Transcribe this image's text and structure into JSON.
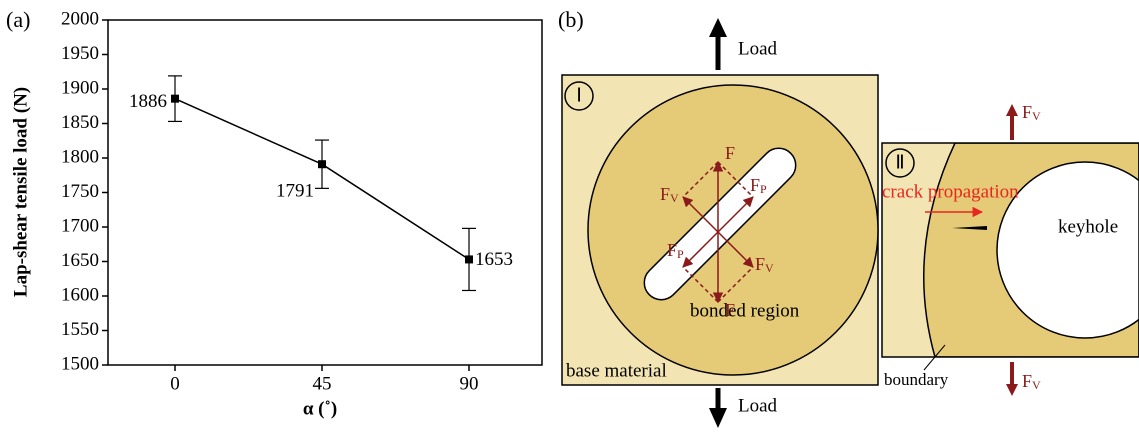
{
  "chart_data": {
    "type": "line",
    "panel_label": "(a)",
    "x_label": "α (˚)",
    "y_label": "Lap-shear tensile load (N)",
    "categories": [
      "0",
      "45",
      "90"
    ],
    "values": [
      1886,
      1791,
      1653
    ],
    "errors": [
      33,
      35,
      45
    ],
    "color": "#000000",
    "ylim": [
      1500,
      2000
    ],
    "yticks": [
      1500,
      1550,
      1600,
      1650,
      1700,
      1750,
      1800,
      1850,
      1900,
      1950,
      2000
    ]
  },
  "diagram": {
    "panel_label": "(b)",
    "load_top": "Load",
    "load_bottom": "Load",
    "panel_1": {
      "label": "Ⅰ",
      "base": "base material",
      "bonded": "bonded region",
      "forces": [
        {
          "base": "F"
        },
        {
          "base": "F"
        },
        {
          "base": "F",
          "sub": "V"
        },
        {
          "base": "F",
          "sub": "V"
        },
        {
          "base": "F",
          "sub": "P"
        },
        {
          "base": "F",
          "sub": "P"
        }
      ]
    },
    "panel_2": {
      "label": "Ⅱ",
      "crack": "crack propagation",
      "keyhole": "keyhole",
      "boundary": "boundary",
      "forces": [
        {
          "base": "F",
          "sub": "V"
        },
        {
          "base": "F",
          "sub": "V"
        }
      ]
    }
  }
}
